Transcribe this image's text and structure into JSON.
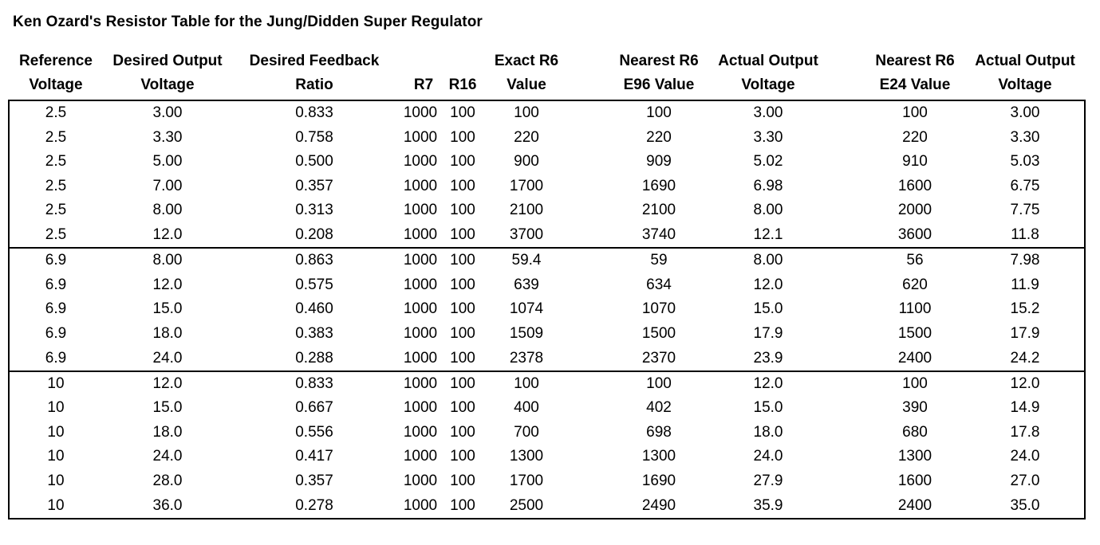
{
  "title": "Ken Ozard's Resistor Table for the Jung/Didden Super Regulator",
  "headers": [
    {
      "key": "ref",
      "lines": [
        "Reference",
        "Voltage"
      ]
    },
    {
      "key": "desired_out",
      "lines": [
        "Desired Output",
        "Voltage"
      ]
    },
    {
      "key": "ratio",
      "lines": [
        "Desired Feedback",
        "Ratio"
      ]
    },
    {
      "key": "r7",
      "lines": [
        "",
        "R7"
      ]
    },
    {
      "key": "r16",
      "lines": [
        "",
        "R16"
      ]
    },
    {
      "key": "exact_r6",
      "lines": [
        "Exact R6",
        "Value"
      ]
    },
    {
      "key": "e96_r6",
      "lines": [
        "Nearest R6",
        "E96 Value"
      ]
    },
    {
      "key": "e96_out",
      "lines": [
        "Actual Output",
        "Voltage"
      ]
    },
    {
      "key": "e24_r6",
      "lines": [
        "Nearest R6",
        "E24 Value"
      ]
    },
    {
      "key": "e24_out",
      "lines": [
        "Actual Output",
        "Voltage"
      ]
    }
  ],
  "groups": [
    {
      "rows": [
        [
          "2.5",
          "3.00",
          "0.833",
          "1000",
          "100",
          "100",
          "100",
          "3.00",
          "100",
          "3.00"
        ],
        [
          "2.5",
          "3.30",
          "0.758",
          "1000",
          "100",
          "220",
          "220",
          "3.30",
          "220",
          "3.30"
        ],
        [
          "2.5",
          "5.00",
          "0.500",
          "1000",
          "100",
          "900",
          "909",
          "5.02",
          "910",
          "5.03"
        ],
        [
          "2.5",
          "7.00",
          "0.357",
          "1000",
          "100",
          "1700",
          "1690",
          "6.98",
          "1600",
          "6.75"
        ],
        [
          "2.5",
          "8.00",
          "0.313",
          "1000",
          "100",
          "2100",
          "2100",
          "8.00",
          "2000",
          "7.75"
        ],
        [
          "2.5",
          "12.0",
          "0.208",
          "1000",
          "100",
          "3700",
          "3740",
          "12.1",
          "3600",
          "11.8"
        ]
      ]
    },
    {
      "rows": [
        [
          "6.9",
          "8.00",
          "0.863",
          "1000",
          "100",
          "59.4",
          "59",
          "8.00",
          "56",
          "7.98"
        ],
        [
          "6.9",
          "12.0",
          "0.575",
          "1000",
          "100",
          "639",
          "634",
          "12.0",
          "620",
          "11.9"
        ],
        [
          "6.9",
          "15.0",
          "0.460",
          "1000",
          "100",
          "1074",
          "1070",
          "15.0",
          "1100",
          "15.2"
        ],
        [
          "6.9",
          "18.0",
          "0.383",
          "1000",
          "100",
          "1509",
          "1500",
          "17.9",
          "1500",
          "17.9"
        ],
        [
          "6.9",
          "24.0",
          "0.288",
          "1000",
          "100",
          "2378",
          "2370",
          "23.9",
          "2400",
          "24.2"
        ]
      ]
    },
    {
      "rows": [
        [
          "10",
          "12.0",
          "0.833",
          "1000",
          "100",
          "100",
          "100",
          "12.0",
          "100",
          "12.0"
        ],
        [
          "10",
          "15.0",
          "0.667",
          "1000",
          "100",
          "400",
          "402",
          "15.0",
          "390",
          "14.9"
        ],
        [
          "10",
          "18.0",
          "0.556",
          "1000",
          "100",
          "700",
          "698",
          "18.0",
          "680",
          "17.8"
        ],
        [
          "10",
          "24.0",
          "0.417",
          "1000",
          "100",
          "1300",
          "1300",
          "24.0",
          "1300",
          "24.0"
        ],
        [
          "10",
          "28.0",
          "0.357",
          "1000",
          "100",
          "1700",
          "1690",
          "27.9",
          "1600",
          "27.0"
        ],
        [
          "10",
          "36.0",
          "0.278",
          "1000",
          "100",
          "2500",
          "2490",
          "35.9",
          "2400",
          "35.0"
        ]
      ]
    }
  ]
}
